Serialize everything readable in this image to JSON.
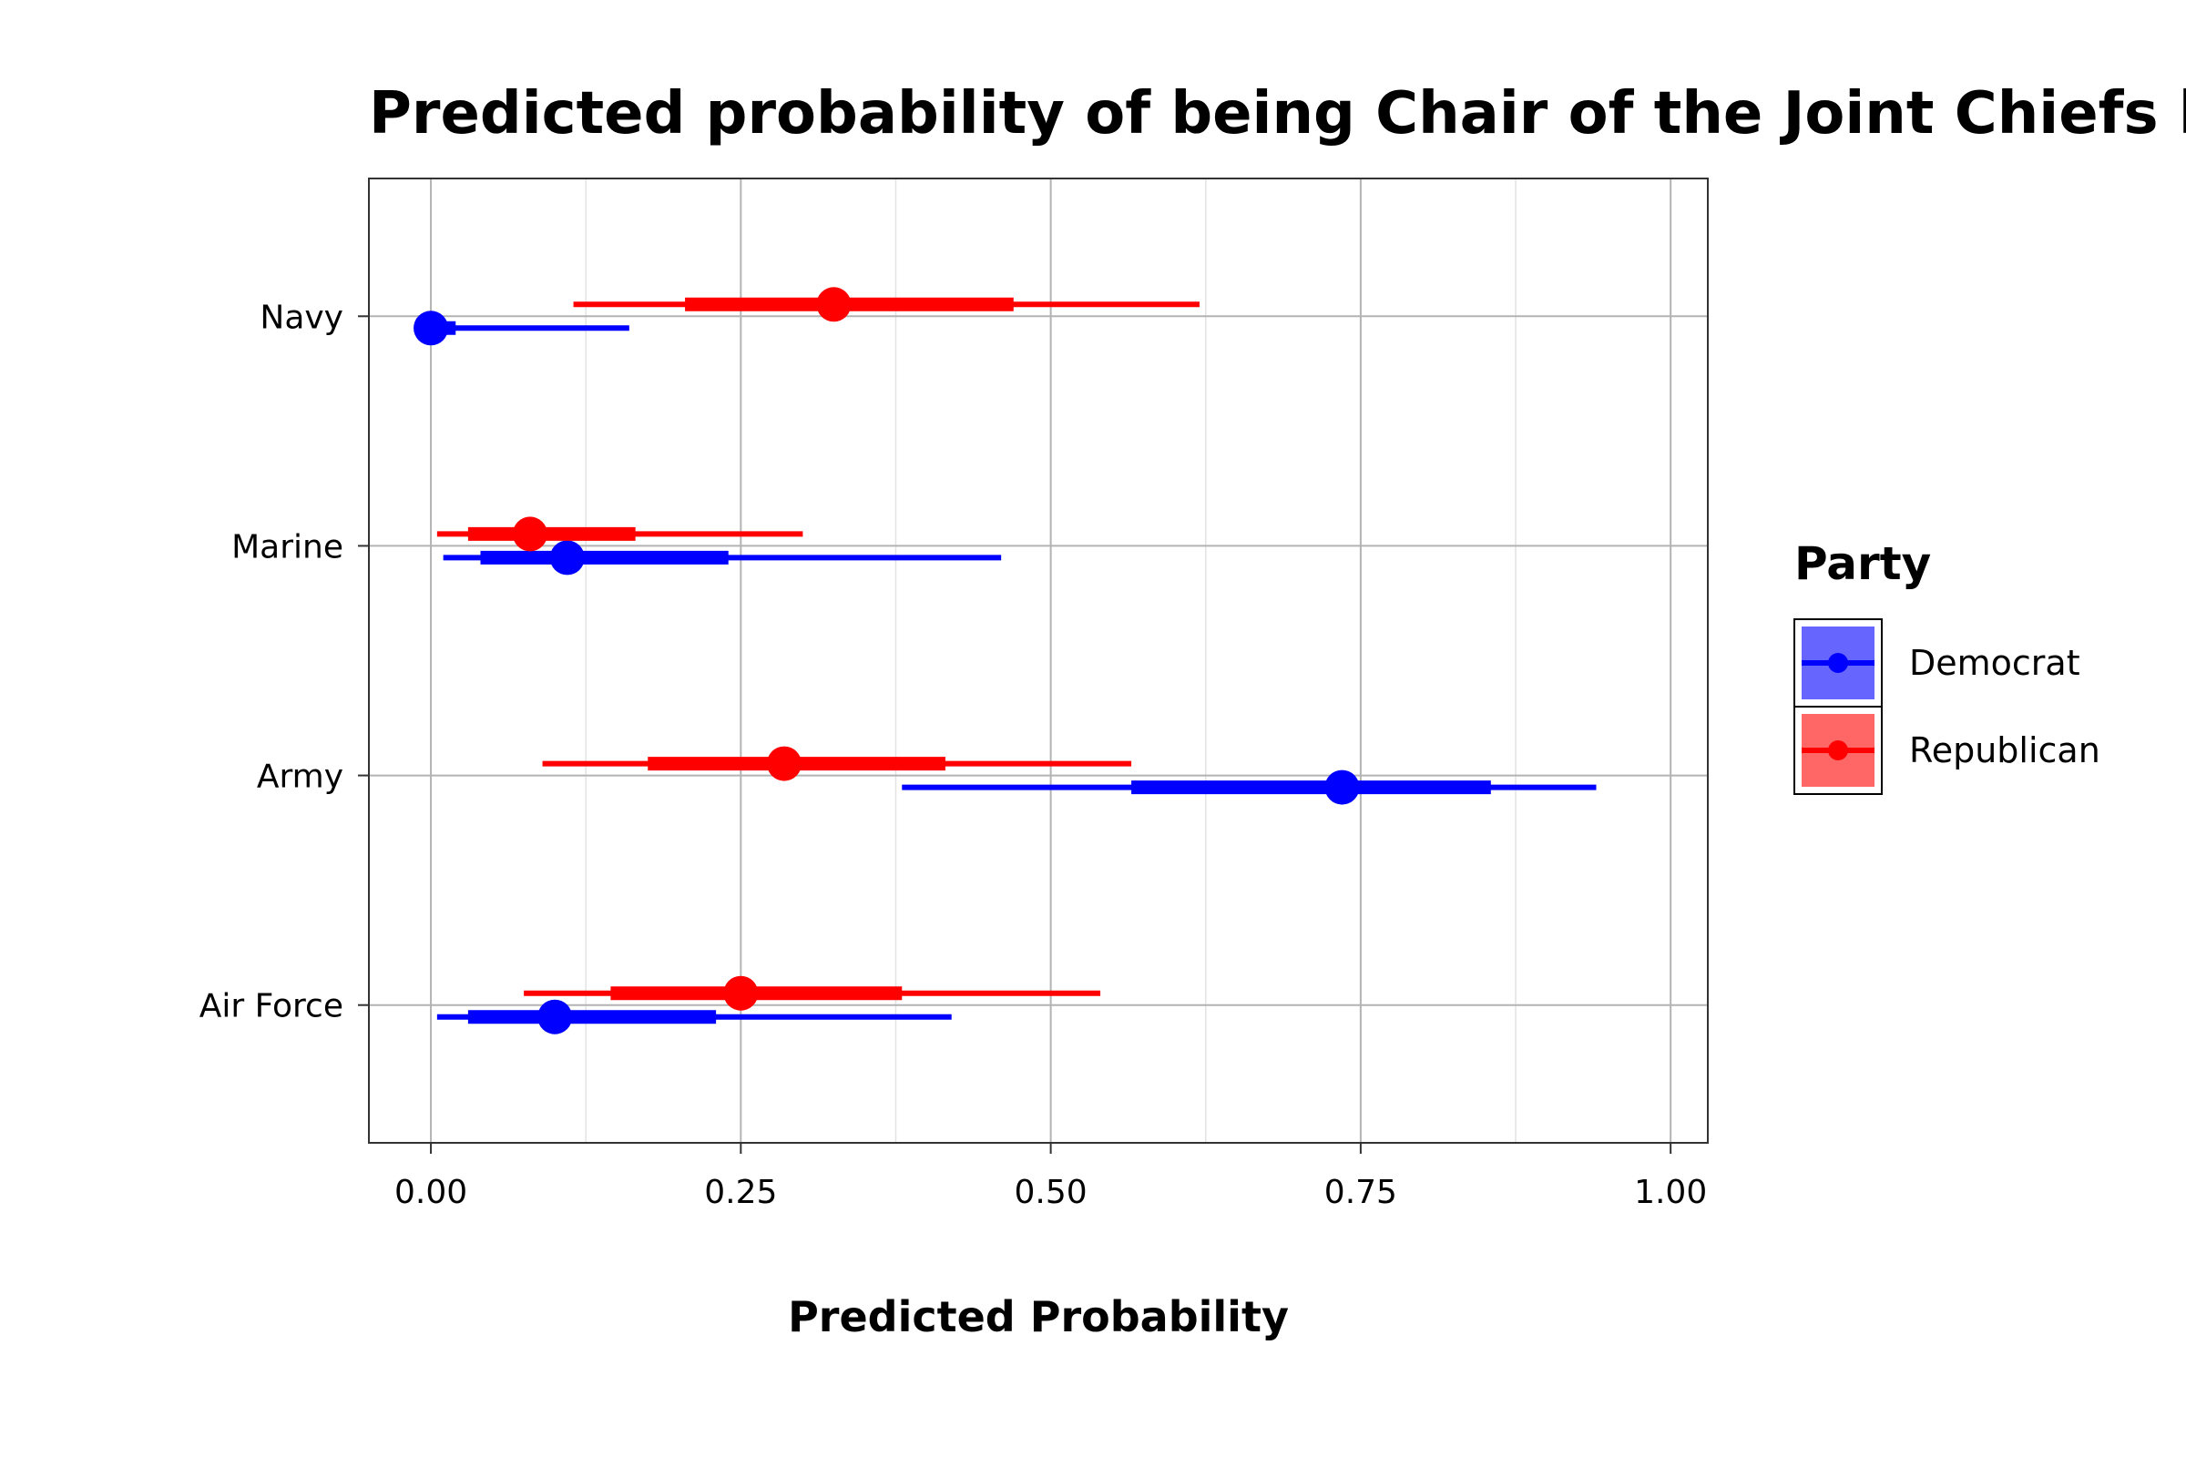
{
  "chart_data": {
    "type": "scatter",
    "title": "Predicted probability of being Chair of the Joint Chiefs by",
    "xlabel": "Predicted Probability",
    "ylabel": "",
    "xlim": [
      -0.05,
      1.03
    ],
    "x_ticks": [
      "0.00",
      "0.25",
      "0.50",
      "0.75",
      "1.00"
    ],
    "x_tick_values": [
      0,
      0.25,
      0.5,
      0.75,
      1.0
    ],
    "categories": [
      "Navy",
      "Marine",
      "Army",
      "Air Force"
    ],
    "grid": true,
    "legend": {
      "title": "Party",
      "placement": "right"
    },
    "series": [
      {
        "name": "Democrat",
        "color": "#0000ff",
        "fill": "#6666ff",
        "points": [
          {
            "category": "Navy",
            "estimate": 0.0,
            "lower_50": 0.0,
            "upper_50": 0.02,
            "lower_95": 0.0,
            "upper_95": 0.16
          },
          {
            "category": "Marine",
            "estimate": 0.11,
            "lower_50": 0.04,
            "upper_50": 0.24,
            "lower_95": 0.01,
            "upper_95": 0.46
          },
          {
            "category": "Army",
            "estimate": 0.735,
            "lower_50": 0.565,
            "upper_50": 0.855,
            "lower_95": 0.38,
            "upper_95": 0.94
          },
          {
            "category": "Air Force",
            "estimate": 0.1,
            "lower_50": 0.03,
            "upper_50": 0.23,
            "lower_95": 0.005,
            "upper_95": 0.42
          }
        ]
      },
      {
        "name": "Republican",
        "color": "#ff0000",
        "fill": "#ff6666",
        "points": [
          {
            "category": "Navy",
            "estimate": 0.325,
            "lower_50": 0.205,
            "upper_50": 0.47,
            "lower_95": 0.115,
            "upper_95": 0.62
          },
          {
            "category": "Marine",
            "estimate": 0.08,
            "lower_50": 0.03,
            "upper_50": 0.165,
            "lower_95": 0.005,
            "upper_95": 0.3
          },
          {
            "category": "Army",
            "estimate": 0.285,
            "lower_50": 0.175,
            "upper_50": 0.415,
            "lower_95": 0.09,
            "upper_95": 0.565
          },
          {
            "category": "Air Force",
            "estimate": 0.25,
            "lower_50": 0.145,
            "upper_50": 0.38,
            "lower_95": 0.075,
            "upper_95": 0.54
          }
        ]
      }
    ]
  }
}
